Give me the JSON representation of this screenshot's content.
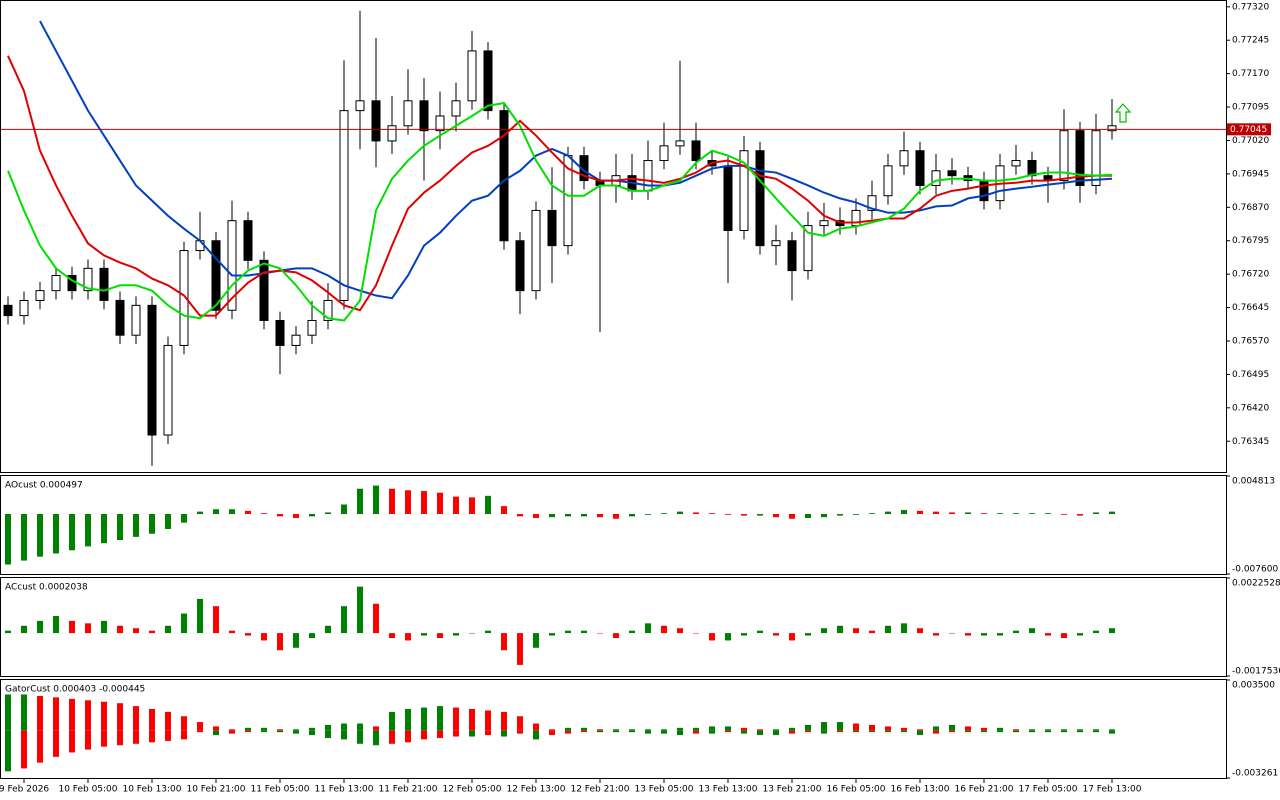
{
  "chart_data": [
    {
      "type": "candlestick",
      "ylim": [
        0.76276,
        0.77333
      ],
      "yticks": [
        {
          "value": 0.7732,
          "label": "0.77320"
        },
        0.77245,
        {
          "value": 0.7717,
          "label": "0.77170"
        },
        0.77095,
        {
          "value": 0.7702,
          "label": "0.77020"
        },
        0.76945,
        {
          "value": 0.7687,
          "label": "0.76870"
        },
        0.76795,
        {
          "value": 0.7672,
          "label": "0.76720"
        },
        0.76645,
        {
          "value": 0.7657,
          "label": "0.76570"
        },
        0.76495,
        {
          "value": 0.7642,
          "label": "0.76420"
        },
        0.76345
      ],
      "up_color": "#ffffff",
      "down_color": "#000000",
      "outline_color": "#000000",
      "current_price": 0.77045,
      "current_price_color": "#c00000",
      "open": [
        0.7665,
        0.76627,
        0.76661,
        0.76683,
        0.76717,
        0.76683,
        0.76733,
        0.76661,
        0.76583,
        0.7665,
        0.76359,
        0.7656,
        0.76773,
        0.76795,
        0.76639,
        0.7684,
        0.76751,
        0.76616,
        0.7656,
        0.76583,
        0.76616,
        0.76661,
        0.77087,
        0.77109,
        0.77019,
        0.77053,
        0.77109,
        0.77042,
        0.77075,
        0.77109,
        0.77221,
        0.77087,
        0.76795,
        0.76683,
        0.76863,
        0.76784,
        0.76986,
        0.7693,
        0.76919,
        0.76941,
        0.76907,
        0.76975,
        0.77008,
        0.77019,
        0.76975,
        0.76963,
        0.76818,
        0.76997,
        0.76784,
        0.76795,
        0.76728,
        0.76829,
        0.7684,
        0.76829,
        0.76863,
        0.76896,
        0.76963,
        0.76997,
        0.76919,
        0.76952,
        0.76941,
        0.7693,
        0.76885,
        0.76963,
        0.76975,
        0.76941,
        0.7693,
        0.77042,
        0.76919,
        0.77042
      ],
      "high": [
        0.7667,
        0.76681,
        0.76703,
        0.76737,
        0.76737,
        0.76753,
        0.76753,
        0.76681,
        0.7667,
        0.7667,
        0.7658,
        0.76793,
        0.7686,
        0.76815,
        0.76885,
        0.7686,
        0.76771,
        0.76636,
        0.76603,
        0.7666,
        0.767,
        0.772,
        0.77311,
        0.7725,
        0.7712,
        0.7718,
        0.7716,
        0.7713,
        0.7715,
        0.77266,
        0.77241,
        0.77107,
        0.76815,
        0.76883,
        0.7696,
        0.77006,
        0.77006,
        0.7695,
        0.7699,
        0.7699,
        0.7702,
        0.7706,
        0.77199,
        0.7706,
        0.76995,
        0.76983,
        0.7703,
        0.77017,
        0.7683,
        0.76815,
        0.7686,
        0.7688,
        0.7687,
        0.7689,
        0.7693,
        0.7699,
        0.7704,
        0.77017,
        0.7699,
        0.7698,
        0.76961,
        0.7695,
        0.7699,
        0.7701,
        0.76995,
        0.76961,
        0.7709,
        0.77062,
        0.7708,
        0.77113
      ],
      "low": [
        0.76607,
        0.76607,
        0.76641,
        0.76663,
        0.76663,
        0.76663,
        0.76641,
        0.76563,
        0.76563,
        0.7629,
        0.76339,
        0.7654,
        0.76753,
        0.76619,
        0.76619,
        0.76731,
        0.76596,
        0.76495,
        0.7654,
        0.76563,
        0.76596,
        0.76641,
        0.77,
        0.7696,
        0.7699,
        0.77033,
        0.7693,
        0.77,
        0.7704,
        0.77089,
        0.77067,
        0.76775,
        0.7663,
        0.76663,
        0.767,
        0.76764,
        0.7691,
        0.7659,
        0.7688,
        0.76887,
        0.76887,
        0.76955,
        0.76988,
        0.76955,
        0.76943,
        0.767,
        0.76798,
        0.76764,
        0.7674,
        0.76661,
        0.76708,
        0.76809,
        0.76809,
        0.76809,
        0.76843,
        0.76876,
        0.76943,
        0.76899,
        0.76899,
        0.76921,
        0.7691,
        0.76865,
        0.76865,
        0.76943,
        0.76921,
        0.7688,
        0.7691,
        0.7688,
        0.76899,
        0.77022
      ],
      "close": [
        0.76627,
        0.76661,
        0.76683,
        0.76717,
        0.76683,
        0.76733,
        0.76661,
        0.76583,
        0.7665,
        0.76359,
        0.7656,
        0.76773,
        0.76795,
        0.76639,
        0.7684,
        0.76751,
        0.76616,
        0.7656,
        0.76583,
        0.76616,
        0.76661,
        0.77087,
        0.77109,
        0.77019,
        0.77053,
        0.77109,
        0.77042,
        0.77075,
        0.77109,
        0.77221,
        0.77087,
        0.76795,
        0.76683,
        0.76863,
        0.76784,
        0.76986,
        0.7693,
        0.76919,
        0.76941,
        0.76907,
        0.76975,
        0.77008,
        0.77019,
        0.76975,
        0.76963,
        0.76818,
        0.76997,
        0.76784,
        0.76795,
        0.76728,
        0.76829,
        0.7684,
        0.76829,
        0.76863,
        0.76896,
        0.76963,
        0.76997,
        0.76919,
        0.76952,
        0.76941,
        0.7693,
        0.76885,
        0.76963,
        0.76975,
        0.76941,
        0.7693,
        0.77042,
        0.76919,
        0.77042,
        0.77053
      ],
      "series": [
        {
          "color": "#0040c0",
          "values": [
            null,
            null,
            0.77288,
            0.77221,
            0.77154,
            0.77087,
            0.77031,
            0.76975,
            0.76919,
            0.76885,
            0.76851,
            0.76822,
            0.76795,
            0.76755,
            0.76717,
            0.76717,
            0.76722,
            0.76728,
            0.76733,
            0.76733,
            0.76717,
            0.76695,
            0.76683,
            0.76672,
            0.76666,
            0.76717,
            0.76784,
            0.76813,
            0.76851,
            0.76885,
            0.76896,
            0.7693,
            0.76952,
            0.76986,
            0.77001,
            0.76986,
            0.76952,
            0.7693,
            0.7693,
            0.76925,
            0.76919,
            0.76919,
            0.76925,
            0.76941,
            0.76957,
            0.76963,
            0.76963,
            0.76952,
            0.76948,
            0.76934,
            0.76919,
            0.76903,
            0.7689,
            0.76881,
            0.76867,
            0.76858,
            0.76858,
            0.76863,
            0.76872,
            0.76874,
            0.7689,
            0.76896,
            0.76907,
            0.76912,
            0.76916,
            0.76921,
            0.76925,
            0.7693,
            0.76932,
            0.76934
          ]
        },
        {
          "color": "#e00000",
          "values": [
            0.7721,
            0.77131,
            0.76997,
            0.76919,
            0.76851,
            0.76789,
            0.76762,
            0.76746,
            0.76733,
            0.7671,
            0.76695,
            0.76672,
            0.76627,
            0.76627,
            0.76666,
            0.76701,
            0.76724,
            0.76728,
            0.76724,
            0.76706,
            0.76679,
            0.7665,
            0.76639,
            0.76695,
            0.76784,
            0.76867,
            0.76903,
            0.7693,
            0.76963,
            0.76993,
            0.77008,
            0.77031,
            0.77064,
            0.77031,
            0.76993,
            0.76957,
            0.76941,
            0.7693,
            0.7693,
            0.76934,
            0.7693,
            0.76925,
            0.76934,
            0.76948,
            0.7697,
            0.76975,
            0.76963,
            0.76941,
            0.76934,
            0.76912,
            0.76885,
            0.76851,
            0.76836,
            0.76836,
            0.7684,
            0.76845,
            0.76845,
            0.76867,
            0.76896,
            0.76907,
            0.76912,
            0.76919,
            0.76923,
            0.76925,
            0.7693,
            0.7693,
            0.76934,
            0.76939,
            0.76941,
            0.76941
          ]
        },
        {
          "color": "#00e000",
          "values": [
            0.76952,
            0.76863,
            0.76784,
            0.76733,
            0.76706,
            0.76688,
            0.76683,
            0.76695,
            0.76695,
            0.76683,
            0.7665,
            0.76627,
            0.76621,
            0.7665,
            0.76695,
            0.76728,
            0.76744,
            0.76733,
            0.76695,
            0.7665,
            0.76621,
            0.76616,
            0.76661,
            0.76863,
            0.76934,
            0.76975,
            0.77008,
            0.77031,
            0.77053,
            0.77075,
            0.77098,
            0.77104,
            0.77053,
            0.76975,
            0.76919,
            0.76896,
            0.76896,
            0.76919,
            0.76919,
            0.76907,
            0.76907,
            0.76919,
            0.7693,
            0.7697,
            0.76997,
            0.76986,
            0.7697,
            0.7693,
            0.7689,
            0.76851,
            0.76813,
            0.76806,
            0.76822,
            0.76827,
            0.76836,
            0.76845,
            0.76867,
            0.76907,
            0.7693,
            0.76934,
            0.76934,
            0.7693,
            0.7693,
            0.76934,
            0.76943,
            0.76948,
            0.76948,
            0.76943,
            0.76941,
            0.76943
          ]
        }
      ]
    },
    {
      "type": "bar",
      "title": "AOcust 0.000497",
      "ylim": [
        -0.0076,
        0.004813
      ],
      "yticks": [
        0.004813,
        {
          "value": -0.0076,
          "label": "-0.007600"
        }
      ],
      "up_color": "#008000",
      "down_color": "#ff0000",
      "values": [
        -0.0064,
        -0.0059,
        -0.0054,
        -0.005,
        -0.0046,
        -0.0041,
        -0.0037,
        -0.0033,
        -0.0029,
        -0.0025,
        -0.0019,
        -0.0011,
        0.0003,
        0.0006,
        0.0006,
        0.0004,
        0.0001,
        -0.0003,
        -0.0005,
        -0.0003,
        0.0002,
        0.0012,
        0.0032,
        0.0036,
        0.0032,
        0.003,
        0.0029,
        0.0027,
        0.0022,
        0.0021,
        0.0023,
        0.001,
        -0.0003,
        -0.0005,
        -0.0004,
        -0.0003,
        -0.0003,
        -0.0004,
        -0.0006,
        -0.0003,
        -0.0001,
        0.0001,
        0.0003,
        0.0002,
        0.0001,
        -0.0001,
        -0.0002,
        -0.0002,
        -0.0004,
        -0.0006,
        -0.0005,
        -0.0004,
        -0.0002,
        -0.0001,
        0.0001,
        0.0003,
        0.0005,
        0.0004,
        0.0003,
        0.0002,
        0.0002,
        0.0001,
        0.0001,
        0.0001,
        0.0001,
        0.0001,
        -0.0001,
        -0.0002,
        0.0002,
        0.0003
      ]
    },
    {
      "type": "bar",
      "title": "ACcust 0.0002038",
      "ylim": [
        -0.0017536,
        0.0022528
      ],
      "yticks": [
        0.0022528,
        -0.0017536
      ],
      "up_color": "#008000",
      "down_color": "#ff0000",
      "values": [
        0.0001,
        0.0003,
        0.0005,
        0.0007,
        0.0005,
        0.0004,
        0.0005,
        0.0003,
        0.0002,
        0.0001,
        0.0003,
        0.0008,
        0.0014,
        0.0011,
        0.0001,
        -0.0001,
        -0.0003,
        -0.0007,
        -0.0006,
        -0.0002,
        0.0003,
        0.0011,
        0.0019,
        0.0012,
        -0.0002,
        -0.0003,
        -0.0001,
        -0.0002,
        -0.0001,
        0,
        0.0001,
        -0.0007,
        -0.0013,
        -0.0006,
        -0.0001,
        0.0001,
        0.0001,
        0,
        -0.0002,
        0.0001,
        0.0004,
        0.0003,
        0.0002,
        0,
        -0.0003,
        -0.0003,
        -0.0001,
        0.0001,
        -0.0001,
        -0.0003,
        -0.0001,
        0.0002,
        0.0003,
        0.0002,
        0.0001,
        0.0003,
        0.0004,
        0.0002,
        -0.0001,
        0,
        -0.0001,
        -0.0001,
        -0.0001,
        0.0001,
        0.0002,
        -0.0001,
        -0.0002,
        -0.0001,
        0.0001,
        0.0002
      ]
    },
    {
      "type": "gator",
      "title": "GatorCust 0.000403 -0.000445",
      "ylim": [
        -0.003261,
        0.0035
      ],
      "yticks": [
        {
          "value": 0.0035,
          "label": "0.003500"
        },
        -0.003261
      ],
      "up_color": "#008000",
      "down_color": "#ff0000",
      "categories": [
        null,
        "9 Feb 2026",
        null,
        null,
        null,
        "10 Feb 05:00",
        null,
        null,
        null,
        "10 Feb 13:00",
        null,
        null,
        null,
        "10 Feb 21:00",
        null,
        null,
        null,
        "11 Feb 05:00",
        null,
        null,
        null,
        "11 Feb 13:00",
        null,
        null,
        null,
        "11 Feb 21:00",
        null,
        null,
        null,
        "12 Feb 05:00",
        null,
        null,
        null,
        "12 Feb 13:00",
        null,
        null,
        null,
        "12 Feb 21:00",
        null,
        null,
        null,
        "13 Feb 05:00",
        null,
        null,
        null,
        "13 Feb 13:00",
        null,
        null,
        null,
        "13 Feb 21:00",
        null,
        null,
        null,
        "16 Feb 05:00",
        null,
        null,
        null,
        "16 Feb 13:00",
        null,
        null,
        null,
        "16 Feb 21:00",
        null,
        null,
        null,
        "17 Feb 05:00",
        null,
        null,
        null,
        "17 Feb 13:00"
      ],
      "series": [
        {
          "values": [
            0.0025,
            0.0025,
            0.0024,
            0.0023,
            0.0022,
            0.0021,
            0.002,
            0.0019,
            0.0017,
            0.0015,
            0.0013,
            0.001,
            0.0006,
            0.0003,
            0.0001,
            0.0002,
            0.0002,
            0.0001,
            0.0001,
            0.0002,
            0.0004,
            0.0005,
            0.0005,
            0.0003,
            0.0013,
            0.0015,
            0.0016,
            0.0017,
            0.0016,
            0.0015,
            0.0014,
            0.0013,
            0.001,
            0.0005,
            0.0001,
            0.0002,
            0.0002,
            0.0001,
            0.0001,
            0.0001,
            0.0001,
            0.0001,
            0.0002,
            0.0002,
            0.0003,
            0.0003,
            0.0002,
            0.0001,
            0.0001,
            0.0002,
            0.0004,
            0.0006,
            0.0006,
            0.0005,
            0.0004,
            0.0003,
            0.0002,
            0.0001,
            0.0003,
            0.0004,
            0.0003,
            0.0002,
            0.0002,
            0.0001,
            0.0001,
            0.0001,
            0.0001,
            0.0001,
            0.0001,
            0.0001
          ]
        },
        {
          "values": [
            -0.0028,
            -0.0026,
            -0.0022,
            -0.0018,
            -0.0015,
            -0.0013,
            -0.0011,
            -0.001,
            -0.0009,
            -0.0008,
            -0.0007,
            -0.0006,
            -0.0001,
            -0.0003,
            -0.0002,
            -0.0001,
            -0.0001,
            -0.0001,
            -0.0002,
            -0.0003,
            -0.0005,
            -0.0006,
            -0.0009,
            -0.001,
            -0.0009,
            -0.0008,
            -0.0006,
            -0.0005,
            -0.0004,
            -0.0004,
            -0.0003,
            -0.0004,
            -0.0002,
            -0.0006,
            -0.0003,
            -0.0002,
            -0.0001,
            -0.0001,
            -0.0001,
            -0.0001,
            -0.0002,
            -0.0002,
            -0.0003,
            -0.0002,
            -0.0002,
            -0.0001,
            -0.0002,
            -0.0003,
            -0.0003,
            -0.0002,
            -0.0001,
            -0.0002,
            -0.0001,
            -0.0001,
            -0.0001,
            -0.0001,
            -0.0001,
            -0.0003,
            -0.0002,
            -0.0001,
            -0.0001,
            -0.0001,
            -0.0001,
            -0.0001,
            -0.0001,
            -0.0001,
            -0.0001,
            -0.0001,
            -0.0001,
            -0.0002
          ]
        }
      ]
    }
  ]
}
